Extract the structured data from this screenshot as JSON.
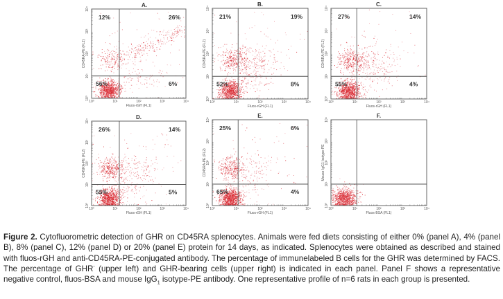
{
  "chart_data": [
    {
      "type": "scatter",
      "id": "A",
      "title": "A.",
      "xlabel": "Fluos-rGH (FL1)",
      "ylabel": "CD45RA-PE (FL2)",
      "xscale": "log",
      "yscale": "log",
      "xlim": [
        1,
        10000
      ],
      "ylim": [
        1,
        10000
      ],
      "x_ticks": [
        "10⁰",
        "10¹",
        "10²",
        "10³",
        "10⁴"
      ],
      "y_ticks": [
        "10⁰",
        "10¹",
        "10²",
        "10³",
        "10⁴"
      ],
      "gate_x": 15,
      "gate_y": 10,
      "quadrants": {
        "upper_left": "12%",
        "upper_right": "26%",
        "lower_left": "56%",
        "lower_right": "6%"
      },
      "diet_protein": "0%"
    },
    {
      "type": "scatter",
      "id": "B",
      "title": "B.",
      "xlabel": "Fluos-rGH (FL1)",
      "ylabel": "CD45RA-PE (FL2)",
      "xscale": "log",
      "yscale": "log",
      "xlim": [
        1,
        10000
      ],
      "ylim": [
        1,
        10000
      ],
      "x_ticks": [
        "10⁰",
        "10¹",
        "10²",
        "10³",
        "10⁴"
      ],
      "y_ticks": [
        "10⁰",
        "10¹",
        "10²",
        "10³",
        "10⁴"
      ],
      "gate_x": 12,
      "gate_y": 10,
      "quadrants": {
        "upper_left": "21%",
        "upper_right": "19%",
        "lower_left": "52%",
        "lower_right": "8%"
      },
      "diet_protein": "4%"
    },
    {
      "type": "scatter",
      "id": "C",
      "title": "C.",
      "xlabel": "Fluos-rGH (FL1)",
      "ylabel": "CD45RA-PE (FL2)",
      "xscale": "log",
      "yscale": "log",
      "xlim": [
        1,
        10000
      ],
      "ylim": [
        1,
        10000
      ],
      "x_ticks": [
        "10⁰",
        "10¹",
        "10²",
        "10³",
        "10⁴"
      ],
      "y_ticks": [
        "10⁰",
        "10¹",
        "10²",
        "10³",
        "10⁴"
      ],
      "gate_x": 12,
      "gate_y": 10,
      "quadrants": {
        "upper_left": "27%",
        "upper_right": "14%",
        "lower_left": "55%",
        "lower_right": "4%"
      },
      "diet_protein": "8%"
    },
    {
      "type": "scatter",
      "id": "D",
      "title": "D.",
      "xlabel": "Fluos-rGH (FL1)",
      "ylabel": "CD45RA-PE (FL2)",
      "xscale": "log",
      "yscale": "log",
      "xlim": [
        1,
        10000
      ],
      "ylim": [
        1,
        10000
      ],
      "x_ticks": [
        "10⁰",
        "10¹",
        "10²",
        "10³",
        "10⁴"
      ],
      "y_ticks": [
        "10⁰",
        "10¹",
        "10²",
        "10³",
        "10⁴"
      ],
      "gate_x": 15,
      "gate_y": 10,
      "quadrants": {
        "upper_left": "26%",
        "upper_right": "14%",
        "lower_left": "55%",
        "lower_right": "5%"
      },
      "diet_protein": "12%"
    },
    {
      "type": "scatter",
      "id": "E",
      "title": "E.",
      "xlabel": "Fluos-rGH (FL1)",
      "ylabel": "CD45RA-PE (FL2)",
      "xscale": "log",
      "yscale": "log",
      "xlim": [
        1,
        10000
      ],
      "ylim": [
        1,
        10000
      ],
      "x_ticks": [
        "10⁰",
        "10¹",
        "10²",
        "10³",
        "10⁴"
      ],
      "y_ticks": [
        "10⁰",
        "10¹",
        "10²",
        "10³",
        "10⁴"
      ],
      "gate_x": 12,
      "gate_y": 10,
      "quadrants": {
        "upper_left": "25%",
        "upper_right": "6%",
        "lower_left": "65%",
        "lower_right": "4%"
      },
      "diet_protein": "20%"
    },
    {
      "type": "scatter",
      "id": "F",
      "title": "F.",
      "xlabel": "Fluos-BSA (FL1)",
      "ylabel": "Mouse IgG1 Isotype-PE",
      "xscale": "log",
      "yscale": "log",
      "xlim": [
        1,
        10000
      ],
      "ylim": [
        1,
        10000
      ],
      "x_ticks": [
        "10⁰",
        "10¹",
        "10²",
        "10³",
        "10⁴"
      ],
      "y_ticks": [
        "10⁰",
        "10¹",
        "10²",
        "10³",
        "10⁴"
      ],
      "gate_x": 12,
      "gate_y": 10,
      "quadrants": {
        "upper_left": "",
        "upper_right": "",
        "lower_left": "",
        "lower_right": ""
      },
      "diet_protein": "negative control"
    }
  ],
  "caption": {
    "label": "Figure 2.",
    "text_1": " Cytofluorometric detection of GHR on CD45RA splenocytes. Animals were fed diets consisting of either 0% (panel A), 4% (panel B), 8% (panel C), 12% (panel D) or 20% (panel E) protein for 14 days, as indicated. Splenocytes were obtained as described and stained with fluos-rGH and anti-CD45RA-PE-conjugated antibody. The percentage of immunelabeled B cells for the GHR was determined by FACS. The percentage of GHR",
    "sup_1": "-",
    "text_2": " (upper left) and GHR-bearing cells (upper right) is indicated in each panel. Panel F shows a representative negative control, fluos-BSA and mouse IgG",
    "sub_1": "1",
    "text_3": " isotype-PE antibody. One representative profile of n=6 rats in each group is presented."
  },
  "colors": {
    "dots": "#d9262e",
    "dots_light": "#e8838a",
    "frame": "#555555",
    "text": "#222222"
  }
}
